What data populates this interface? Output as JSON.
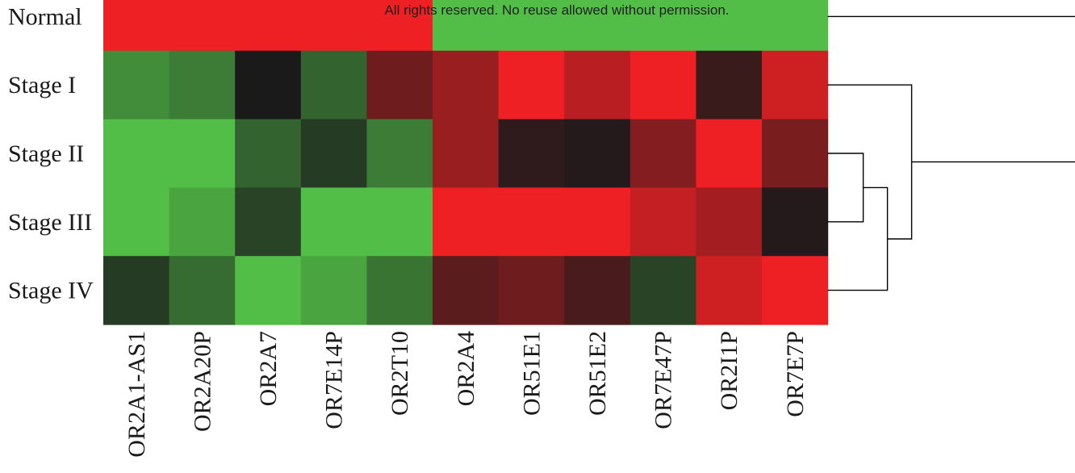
{
  "watermark": "All rights reserved. No reuse allowed without permission.",
  "chart_data": {
    "type": "heatmap",
    "title": "",
    "xlabel": "",
    "ylabel": "",
    "rows": [
      "Normal",
      "Stage I",
      "Stage II",
      "Stage III",
      "Stage IV"
    ],
    "columns": [
      "OR2A1-AS1",
      "OR2A20P",
      "OR2A7",
      "OR7E14P",
      "OR2T10",
      "OR2A4",
      "OR51E1",
      "OR51E2",
      "OR7E47P",
      "OR2I1P",
      "OR7E7P"
    ],
    "scale": "green (low) - black (mid) - red (high)",
    "values": [
      [
        1.0,
        1.0,
        1.0,
        1.0,
        1.0,
        -1.0,
        -1.0,
        -1.0,
        -1.0,
        -1.0,
        -1.0
      ],
      [
        -0.7,
        -0.6,
        0.0,
        -0.45,
        0.4,
        0.6,
        1.0,
        0.75,
        1.0,
        0.15,
        0.85
      ],
      [
        -1.0,
        -1.0,
        -0.45,
        -0.2,
        -0.6,
        0.6,
        0.1,
        0.05,
        0.5,
        1.0,
        0.45
      ],
      [
        -1.0,
        -0.85,
        -0.25,
        -1.0,
        -1.0,
        1.0,
        1.0,
        1.0,
        0.8,
        0.65,
        0.05
      ],
      [
        -0.2,
        -0.5,
        -1.0,
        -0.85,
        -0.55,
        0.3,
        0.4,
        0.22,
        -0.25,
        0.85,
        1.0
      ]
    ],
    "dendrogram": {
      "orientation": "rows",
      "merges": [
        {
          "a": "Stage III",
          "b": "Stage II",
          "height": 0.1
        },
        {
          "a": "merge1",
          "b": "Stage IV",
          "height": 0.2
        },
        {
          "a": "merge2",
          "b": "Stage I",
          "height": 0.3
        },
        {
          "a": "merge3",
          "b": "Normal",
          "height": 1.0
        }
      ]
    },
    "colors": {
      "high": "#ee2024",
      "mid": "#1a1a1a",
      "low": "#52be48"
    }
  }
}
